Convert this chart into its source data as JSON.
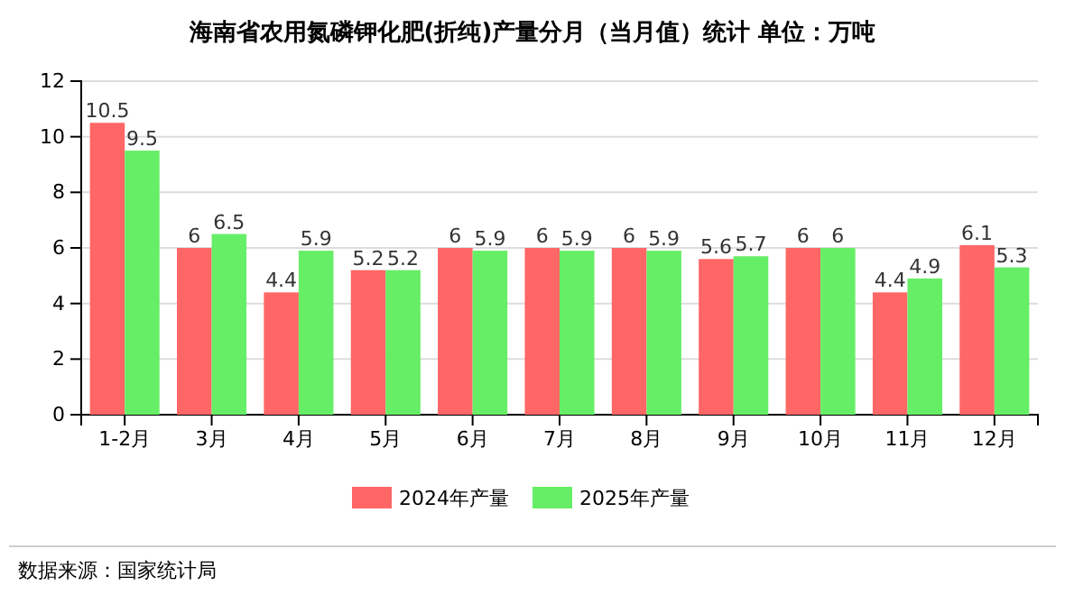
{
  "chart_data": {
    "type": "bar",
    "title": "海南省农用氮磷钾化肥(折纯)产量分月（当月值）统计  单位：万吨",
    "categories": [
      "1-2月",
      "3月",
      "4月",
      "5月",
      "6月",
      "7月",
      "8月",
      "9月",
      "10月",
      "11月",
      "12月"
    ],
    "series": [
      {
        "name": "2024年产量",
        "color": "#ff6666",
        "values": [
          10.5,
          6,
          4.4,
          5.2,
          6,
          6,
          6,
          5.6,
          6,
          4.4,
          6.1
        ]
      },
      {
        "name": "2025年产量",
        "color": "#66ee66",
        "values": [
          9.5,
          6.5,
          5.9,
          5.2,
          5.9,
          5.9,
          5.9,
          5.7,
          6,
          4.9,
          5.3
        ]
      }
    ],
    "ylim": [
      0,
      12
    ],
    "yticks": [
      0,
      2,
      4,
      6,
      8,
      10,
      12
    ],
    "grid": "y",
    "legend": "bottom",
    "data_labels": true,
    "annotations": [
      "数据来源：国家统计局"
    ]
  }
}
